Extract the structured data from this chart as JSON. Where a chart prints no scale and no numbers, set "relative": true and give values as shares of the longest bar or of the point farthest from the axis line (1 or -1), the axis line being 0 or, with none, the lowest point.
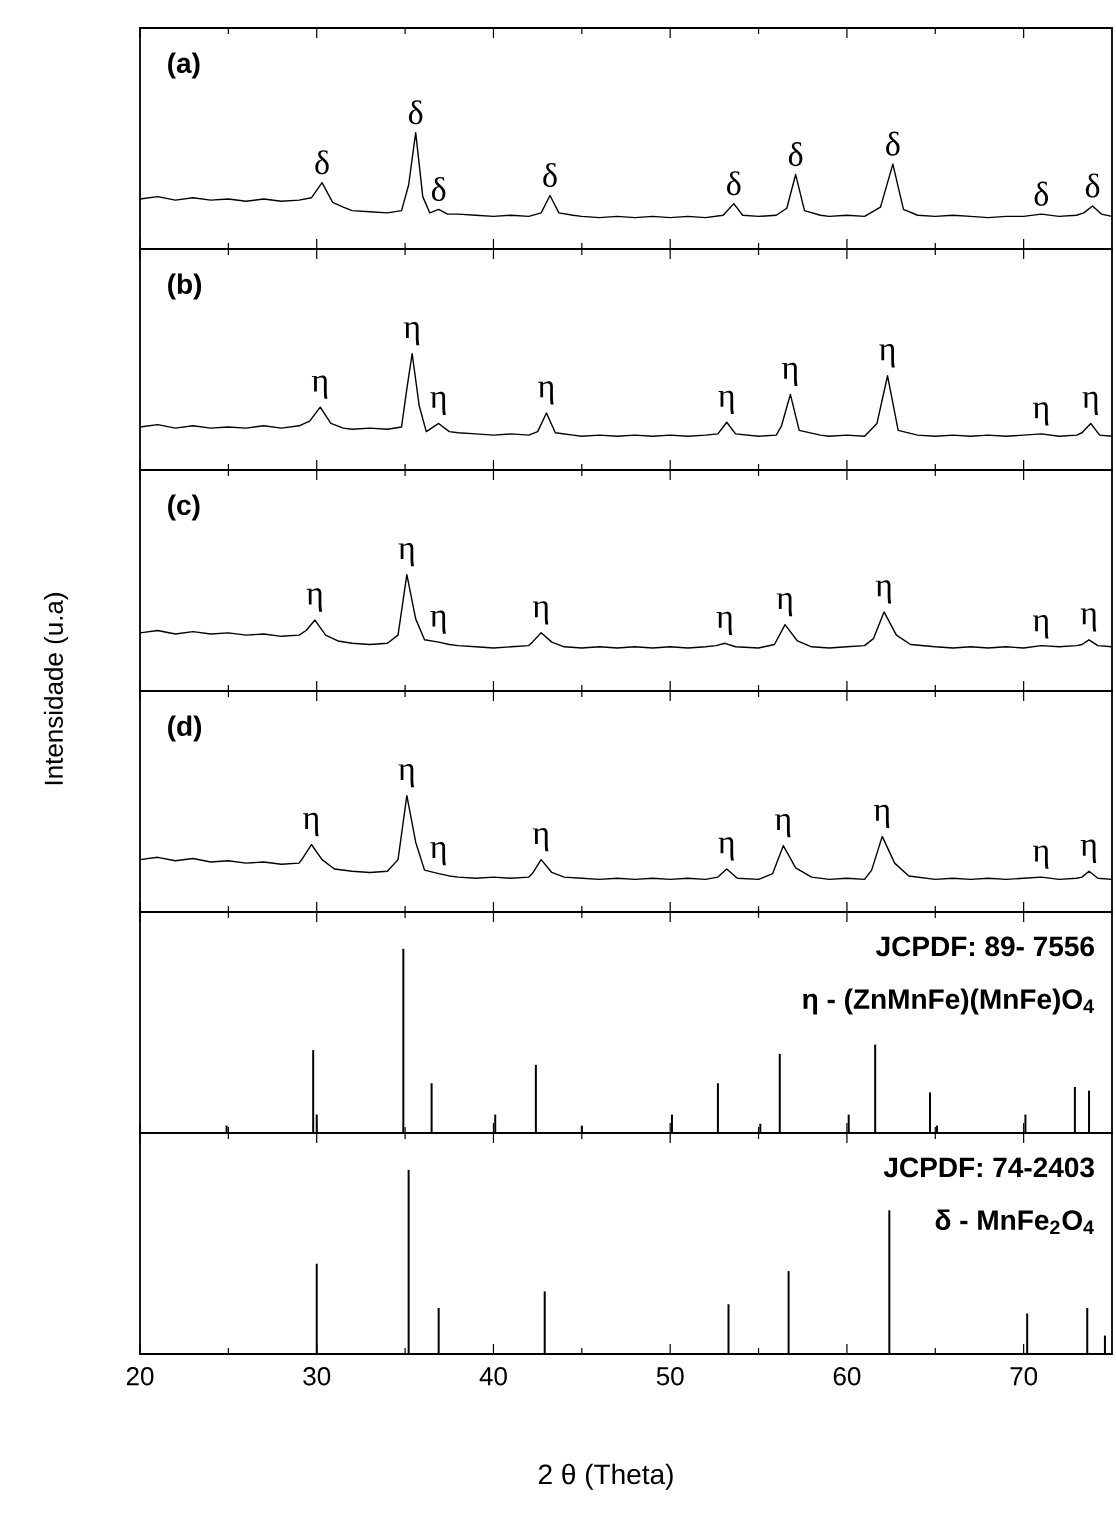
{
  "chart_data": [
    {
      "type": "line",
      "relative": true,
      "xlim": [
        20,
        75
      ],
      "xticks": [
        20,
        30,
        40,
        50,
        60,
        70
      ],
      "tick_labels": false,
      "x": [
        20,
        21,
        22,
        23,
        24,
        25,
        26,
        27,
        28,
        29,
        29.7,
        30.3,
        30.9,
        31.5,
        32,
        33,
        34,
        34.8,
        35.2,
        35.6,
        36.0,
        36.4,
        36.9,
        37.4,
        38,
        39,
        40,
        41,
        42,
        42.7,
        43.2,
        43.7,
        44.5,
        45,
        46,
        47,
        48,
        49,
        50,
        51,
        52,
        53,
        53.6,
        54.1,
        55,
        56,
        56.6,
        57.1,
        57.6,
        58.5,
        59,
        60,
        61,
        61.9,
        62.6,
        63.2,
        64,
        65,
        66,
        67,
        68,
        69,
        70,
        71,
        72,
        73,
        73.4,
        73.9,
        74.4,
        75
      ],
      "series": [
        {
          "color": "#000000",
          "values": [
            0.43,
            0.45,
            0.42,
            0.44,
            0.42,
            0.43,
            0.41,
            0.43,
            0.41,
            0.42,
            0.44,
            0.57,
            0.4,
            0.36,
            0.33,
            0.32,
            0.31,
            0.33,
            0.55,
            1.0,
            0.45,
            0.31,
            0.34,
            0.3,
            0.3,
            0.29,
            0.28,
            0.29,
            0.28,
            0.31,
            0.46,
            0.31,
            0.29,
            0.28,
            0.27,
            0.28,
            0.27,
            0.28,
            0.27,
            0.28,
            0.27,
            0.29,
            0.39,
            0.29,
            0.28,
            0.29,
            0.35,
            0.64,
            0.33,
            0.29,
            0.28,
            0.29,
            0.28,
            0.36,
            0.73,
            0.34,
            0.29,
            0.28,
            0.29,
            0.28,
            0.27,
            0.28,
            0.28,
            0.3,
            0.28,
            0.29,
            0.31,
            0.37,
            0.3,
            0.28
          ]
        }
      ],
      "annotations": [
        "(a)",
        {
          "text": "δ",
          "x": 30.3,
          "y": 0.57
        },
        {
          "text": "δ",
          "x": 35.6,
          "y": 1.0
        },
        {
          "text": "δ",
          "x": 36.9,
          "y": 0.34
        },
        {
          "text": "δ",
          "x": 43.2,
          "y": 0.46
        },
        {
          "text": "δ",
          "x": 53.6,
          "y": 0.39
        },
        {
          "text": "δ",
          "x": 57.1,
          "y": 0.64
        },
        {
          "text": "δ",
          "x": 62.6,
          "y": 0.73
        },
        {
          "text": "δ",
          "x": 71,
          "y": 0.3
        },
        {
          "text": "δ",
          "x": 73.9,
          "y": 0.37
        }
      ]
    },
    {
      "type": "line",
      "relative": true,
      "xlim": [
        20,
        75
      ],
      "xticks": [
        20,
        30,
        40,
        50,
        60,
        70
      ],
      "tick_labels": false,
      "x": [
        20,
        21,
        22,
        23,
        24,
        25,
        26,
        27,
        28,
        29,
        29.6,
        30.2,
        30.8,
        31.5,
        32,
        33,
        34,
        34.8,
        35.1,
        35.4,
        35.8,
        36.2,
        36.9,
        37.5,
        38,
        39,
        40,
        41,
        42,
        42.5,
        43.0,
        43.5,
        44.5,
        45,
        46,
        47,
        48,
        49,
        50,
        51,
        52,
        52.7,
        53.2,
        53.7,
        55,
        56,
        56.3,
        56.8,
        57.3,
        58.5,
        59,
        60,
        61,
        61.7,
        62.3,
        62.9,
        64,
        65,
        66,
        67,
        68,
        69,
        70,
        71,
        72,
        73,
        73.3,
        73.8,
        74.3,
        75
      ],
      "series": [
        {
          "color": "#000000",
          "values": [
            0.37,
            0.39,
            0.36,
            0.38,
            0.36,
            0.37,
            0.36,
            0.38,
            0.36,
            0.38,
            0.42,
            0.54,
            0.4,
            0.36,
            0.35,
            0.36,
            0.35,
            0.37,
            0.7,
            1.0,
            0.55,
            0.33,
            0.4,
            0.33,
            0.32,
            0.31,
            0.3,
            0.31,
            0.3,
            0.33,
            0.49,
            0.32,
            0.3,
            0.29,
            0.3,
            0.29,
            0.3,
            0.29,
            0.3,
            0.29,
            0.3,
            0.31,
            0.41,
            0.31,
            0.29,
            0.3,
            0.38,
            0.65,
            0.34,
            0.3,
            0.29,
            0.3,
            0.29,
            0.4,
            0.81,
            0.34,
            0.3,
            0.29,
            0.3,
            0.29,
            0.3,
            0.29,
            0.3,
            0.31,
            0.29,
            0.3,
            0.32,
            0.4,
            0.3,
            0.29
          ]
        }
      ],
      "annotations": [
        "(b)",
        {
          "text": "η",
          "x": 30.2,
          "y": 0.54
        },
        {
          "text": "η",
          "x": 35.4,
          "y": 1.0
        },
        {
          "text": "η",
          "x": 36.9,
          "y": 0.4
        },
        {
          "text": "η",
          "x": 43.0,
          "y": 0.49
        },
        {
          "text": "η",
          "x": 53.2,
          "y": 0.41
        },
        {
          "text": "η",
          "x": 56.8,
          "y": 0.65
        },
        {
          "text": "η",
          "x": 62.3,
          "y": 0.81
        },
        {
          "text": "η",
          "x": 71,
          "y": 0.31
        },
        {
          "text": "η",
          "x": 73.8,
          "y": 0.4
        }
      ]
    },
    {
      "type": "line",
      "relative": true,
      "xlim": [
        20,
        75
      ],
      "xticks": [
        20,
        30,
        40,
        50,
        60,
        70
      ],
      "tick_labels": false,
      "ylabel": "Intensidade (u.a)",
      "x": [
        20,
        21,
        22,
        23,
        24,
        25,
        26,
        27,
        28,
        29,
        29.4,
        29.9,
        30.5,
        31.2,
        32,
        33,
        34,
        34.6,
        35.1,
        35.6,
        36.1,
        36.9,
        37.5,
        38,
        39,
        40,
        41,
        42,
        42.2,
        42.7,
        43.3,
        44,
        45,
        46,
        47,
        48,
        49,
        50,
        51,
        52,
        52.6,
        53.1,
        53.7,
        55,
        55.9,
        56.5,
        57.2,
        58,
        59,
        60,
        61,
        61.5,
        62.1,
        62.8,
        63.6,
        65,
        66,
        67,
        68,
        69,
        70,
        71,
        72,
        73,
        73.3,
        73.7,
        74.2,
        75
      ],
      "series": [
        {
          "color": "#000000",
          "values": [
            0.5,
            0.52,
            0.49,
            0.51,
            0.49,
            0.5,
            0.48,
            0.49,
            0.47,
            0.48,
            0.52,
            0.61,
            0.48,
            0.43,
            0.41,
            0.4,
            0.41,
            0.48,
            1.0,
            0.62,
            0.44,
            0.42,
            0.4,
            0.39,
            0.38,
            0.37,
            0.38,
            0.39,
            0.42,
            0.5,
            0.42,
            0.38,
            0.37,
            0.38,
            0.37,
            0.38,
            0.37,
            0.38,
            0.37,
            0.38,
            0.39,
            0.41,
            0.38,
            0.37,
            0.4,
            0.57,
            0.43,
            0.38,
            0.37,
            0.38,
            0.39,
            0.45,
            0.68,
            0.48,
            0.4,
            0.38,
            0.37,
            0.38,
            0.37,
            0.38,
            0.37,
            0.39,
            0.38,
            0.39,
            0.4,
            0.44,
            0.39,
            0.38
          ]
        }
      ],
      "annotations": [
        "(c)",
        {
          "text": "η",
          "x": 29.9,
          "y": 0.61
        },
        {
          "text": "η",
          "x": 35.1,
          "y": 1.0
        },
        {
          "text": "η",
          "x": 36.9,
          "y": 0.42
        },
        {
          "text": "η",
          "x": 42.7,
          "y": 0.5
        },
        {
          "text": "η",
          "x": 53.1,
          "y": 0.41
        },
        {
          "text": "η",
          "x": 56.5,
          "y": 0.57
        },
        {
          "text": "η",
          "x": 62.1,
          "y": 0.68
        },
        {
          "text": "η",
          "x": 71,
          "y": 0.38
        },
        {
          "text": "η",
          "x": 73.7,
          "y": 0.44
        }
      ]
    },
    {
      "type": "line",
      "relative": true,
      "xlim": [
        20,
        75
      ],
      "xticks": [
        20,
        30,
        40,
        50,
        60,
        70
      ],
      "tick_labels": false,
      "x": [
        20,
        21,
        22,
        23,
        24,
        25,
        26,
        27,
        28,
        29,
        29.2,
        29.7,
        30.3,
        31,
        32,
        33,
        34,
        34.6,
        35.1,
        35.6,
        36.1,
        36.9,
        37.5,
        38,
        39,
        40,
        41,
        42,
        42.2,
        42.7,
        43.3,
        44,
        45,
        46,
        47,
        48,
        49,
        50,
        51,
        52,
        52.7,
        53.2,
        53.8,
        55,
        55.8,
        56.4,
        57.1,
        58,
        59,
        60,
        61,
        61.4,
        62.0,
        62.7,
        63.5,
        65,
        66,
        67,
        68,
        69,
        70,
        71,
        72,
        73,
        73.3,
        73.7,
        74.2,
        75
      ],
      "series": [
        {
          "color": "#000000",
          "values": [
            0.45,
            0.47,
            0.44,
            0.46,
            0.43,
            0.44,
            0.42,
            0.43,
            0.41,
            0.42,
            0.46,
            0.58,
            0.45,
            0.37,
            0.35,
            0.34,
            0.35,
            0.45,
            1.0,
            0.6,
            0.36,
            0.33,
            0.31,
            0.3,
            0.29,
            0.3,
            0.29,
            0.3,
            0.33,
            0.45,
            0.34,
            0.3,
            0.29,
            0.28,
            0.29,
            0.28,
            0.29,
            0.28,
            0.29,
            0.28,
            0.3,
            0.37,
            0.29,
            0.28,
            0.33,
            0.57,
            0.38,
            0.3,
            0.28,
            0.29,
            0.28,
            0.36,
            0.65,
            0.42,
            0.31,
            0.28,
            0.29,
            0.28,
            0.29,
            0.28,
            0.29,
            0.3,
            0.28,
            0.29,
            0.3,
            0.35,
            0.29,
            0.28
          ]
        }
      ],
      "annotations": [
        "(d)",
        {
          "text": "η",
          "x": 29.7,
          "y": 0.58
        },
        {
          "text": "η",
          "x": 35.1,
          "y": 1.0
        },
        {
          "text": "η",
          "x": 36.9,
          "y": 0.33
        },
        {
          "text": "η",
          "x": 42.7,
          "y": 0.45
        },
        {
          "text": "η",
          "x": 53.2,
          "y": 0.37
        },
        {
          "text": "η",
          "x": 56.4,
          "y": 0.57
        },
        {
          "text": "η",
          "x": 62.0,
          "y": 0.65
        },
        {
          "text": "η",
          "x": 71,
          "y": 0.3
        },
        {
          "text": "η",
          "x": 73.7,
          "y": 0.35
        }
      ]
    },
    {
      "type": "bar",
      "relative": true,
      "xlim": [
        20,
        75
      ],
      "xticks": [
        20,
        30,
        40,
        50,
        60,
        70
      ],
      "tick_labels": false,
      "x": [
        24.9,
        29.8,
        30.0,
        34.9,
        36.5,
        40.1,
        42.4,
        45.0,
        50.1,
        52.7,
        55.1,
        56.2,
        60.1,
        61.6,
        64.7,
        65.1,
        70.1,
        72.9,
        73.7
      ],
      "series": [
        {
          "color": "#000000",
          "values": [
            0.04,
            0.45,
            0.1,
            1.0,
            0.27,
            0.1,
            0.37,
            0.04,
            0.1,
            0.27,
            0.05,
            0.43,
            0.1,
            0.48,
            0.22,
            0.04,
            0.1,
            0.25,
            0.23
          ]
        }
      ],
      "annotations": [
        "JCPDF: 89- 7556",
        "η - (ZnMnFe)(MnFe)O$_{4}$"
      ]
    },
    {
      "type": "bar",
      "relative": true,
      "xlim": [
        20,
        75
      ],
      "xticks": [
        20,
        30,
        40,
        50,
        60,
        70
      ],
      "tick_labels": "x",
      "xlabel": "2 θ (Theta)",
      "x": [
        30.0,
        35.2,
        36.9,
        42.9,
        53.3,
        56.7,
        62.4,
        70.2,
        73.6,
        74.6
      ],
      "series": [
        {
          "color": "#000000",
          "values": [
            0.49,
            1.0,
            0.25,
            0.34,
            0.27,
            0.45,
            0.78,
            0.22,
            0.25,
            0.1
          ]
        }
      ],
      "annotations": [
        "JCPDF: 74-2403",
        "δ - MnFe$_{2}$O$_{4}$"
      ]
    }
  ]
}
